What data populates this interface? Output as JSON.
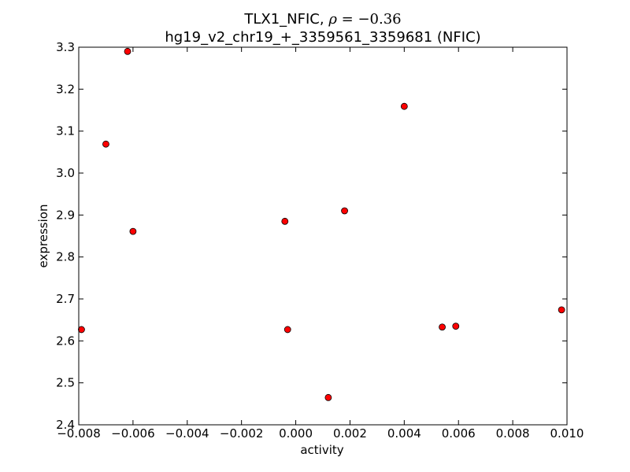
{
  "chart_data": {
    "type": "scatter",
    "title": "TLX1_NFIC, ",
    "title_rho_symbol": "ρ",
    "title_rho_value": " = −0.36",
    "subtitle": "hg19_v2_chr19_+_3359561_3359681 (NFIC)",
    "xlabel": "activity",
    "ylabel": "expression",
    "xlim": [
      -0.008,
      0.01
    ],
    "ylim": [
      2.4,
      3.3
    ],
    "x_ticks": [
      -0.008,
      -0.006,
      -0.004,
      -0.002,
      0.0,
      0.002,
      0.004,
      0.006,
      0.008,
      0.01
    ],
    "x_tick_labels": [
      "−0.008",
      "−0.006",
      "−0.004",
      "−0.002",
      "0.000",
      "0.002",
      "0.004",
      "0.006",
      "0.008",
      "0.010"
    ],
    "y_ticks": [
      2.4,
      2.5,
      2.6,
      2.7,
      2.8,
      2.9,
      3.0,
      3.1,
      3.2,
      3.3
    ],
    "y_tick_labels": [
      "2.4",
      "2.5",
      "2.6",
      "2.7",
      "2.8",
      "2.9",
      "3.0",
      "3.1",
      "3.2",
      "3.3"
    ],
    "grid": false,
    "marker_color": "#ff0000",
    "marker_edge_color": "#000000",
    "points": [
      {
        "x": -0.0079,
        "y": 2.627
      },
      {
        "x": -0.007,
        "y": 3.069
      },
      {
        "x": -0.0062,
        "y": 3.29
      },
      {
        "x": -0.006,
        "y": 2.861
      },
      {
        "x": -0.0004,
        "y": 2.885
      },
      {
        "x": -0.0003,
        "y": 2.627
      },
      {
        "x": 0.0012,
        "y": 2.465
      },
      {
        "x": 0.0018,
        "y": 2.91
      },
      {
        "x": 0.004,
        "y": 3.159
      },
      {
        "x": 0.0054,
        "y": 2.633
      },
      {
        "x": 0.0059,
        "y": 2.635
      },
      {
        "x": 0.0098,
        "y": 2.674
      }
    ]
  }
}
